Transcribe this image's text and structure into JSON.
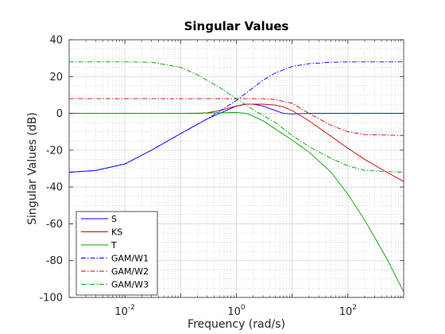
{
  "chart_data": {
    "type": "line",
    "title": "Singular Values",
    "xlabel": "Frequency (rad/s)",
    "ylabel": "Singular Values (dB)",
    "xscale": "log",
    "xlim": [
      0.001,
      1000
    ],
    "ylim": [
      -100,
      40
    ],
    "yticks": [
      40,
      20,
      0,
      -20,
      -40,
      -60,
      -80,
      -100
    ],
    "xticks": [
      {
        "base": "10",
        "exp": "-2",
        "value": 0.01
      },
      {
        "base": "10",
        "exp": "0",
        "value": 1
      },
      {
        "base": "10",
        "exp": "2",
        "value": 100
      }
    ],
    "grid": true,
    "minor_grid": true,
    "legend_position": "bottom-left",
    "series": [
      {
        "name": "S",
        "color": "#0000ff",
        "dash": "solid",
        "x": [
          0.001,
          0.003,
          0.01,
          0.03,
          0.1,
          0.3,
          1,
          1.5,
          2,
          3,
          5,
          7,
          10,
          20,
          100,
          1000
        ],
        "y": [
          -32,
          -31,
          -27.5,
          -20,
          -11,
          -3,
          4,
          5,
          5,
          4,
          1.5,
          0,
          -0.3,
          0,
          0,
          0
        ]
      },
      {
        "name": "KS",
        "color": "#cc0000",
        "dash": "solid",
        "x": [
          0.001,
          0.1,
          0.2,
          0.3,
          0.5,
          1,
          1.5,
          2,
          3,
          5,
          7,
          10,
          20,
          50,
          100,
          200,
          500,
          1000
        ],
        "y": [
          0,
          0,
          0,
          0.3,
          1.5,
          4,
          5,
          5,
          5,
          4.5,
          3.5,
          1.5,
          -4,
          -12.5,
          -19,
          -25,
          -32,
          -37
        ]
      },
      {
        "name": "T",
        "color": "#00a000",
        "dash": "solid",
        "x": [
          0.001,
          0.1,
          0.3,
          1,
          1.5,
          2,
          3,
          5,
          10,
          20,
          50,
          100,
          200,
          500,
          1000
        ],
        "y": [
          0,
          0,
          0.2,
          0.5,
          0,
          -1.5,
          -4,
          -8.5,
          -14.5,
          -21,
          -32,
          -44,
          -58,
          -79,
          -97
        ]
      },
      {
        "name": "GAM/W1",
        "color": "#0000ff",
        "dash": "dashdot",
        "x": [
          0.001,
          0.003,
          0.01,
          0.03,
          0.1,
          0.3,
          1,
          2,
          3,
          5,
          10,
          20,
          50,
          100,
          1000
        ],
        "y": [
          -32,
          -31,
          -27.5,
          -20,
          -11,
          -3,
          7,
          14,
          18,
          22,
          25.5,
          27,
          27.8,
          28,
          28
        ]
      },
      {
        "name": "GAM/W2",
        "color": "#cc0000",
        "dash": "dashdot",
        "x": [
          0.001,
          0.1,
          1,
          3,
          5,
          10,
          20,
          50,
          100,
          200,
          1000
        ],
        "y": [
          8,
          8,
          8,
          8,
          7.5,
          5.5,
          0,
          -6.5,
          -10,
          -11.5,
          -12
        ]
      },
      {
        "name": "GAM/W3",
        "color": "#00a000",
        "dash": "dashdot",
        "x": [
          0.001,
          0.01,
          0.03,
          0.1,
          0.2,
          0.5,
          1,
          2,
          5,
          10,
          20,
          50,
          100,
          200,
          1000
        ],
        "y": [
          28,
          28,
          27.8,
          25,
          21,
          14,
          8,
          2,
          -5,
          -12,
          -18,
          -24.5,
          -28.5,
          -31,
          -32
        ]
      }
    ]
  }
}
